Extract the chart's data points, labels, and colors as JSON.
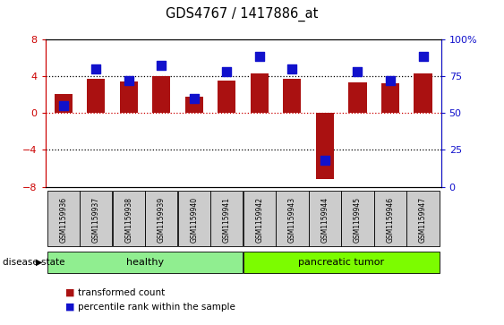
{
  "title": "GDS4767 / 1417886_at",
  "samples": [
    "GSM1159936",
    "GSM1159937",
    "GSM1159938",
    "GSM1159939",
    "GSM1159940",
    "GSM1159941",
    "GSM1159942",
    "GSM1159943",
    "GSM1159944",
    "GSM1159945",
    "GSM1159946",
    "GSM1159947"
  ],
  "bar_values": [
    2.0,
    3.7,
    3.4,
    4.0,
    1.8,
    3.5,
    4.3,
    3.7,
    -7.2,
    3.3,
    3.2,
    4.3
  ],
  "percentile_values": [
    55,
    80,
    72,
    82,
    60,
    78,
    88,
    80,
    18,
    78,
    72,
    88
  ],
  "bar_color": "#AA1111",
  "percentile_color": "#1111CC",
  "healthy_label": "healthy",
  "tumor_label": "pancreatic tumor",
  "disease_state_label": "disease state",
  "legend_bar_label": "transformed count",
  "legend_pct_label": "percentile rank within the sample",
  "ylim_left": [
    -8,
    8
  ],
  "yticks_left": [
    -8,
    -4,
    0,
    4,
    8
  ],
  "ylim_right": [
    0,
    100
  ],
  "yticks_right": [
    0,
    25,
    50,
    75,
    100
  ],
  "ytick_labels_right": [
    "0",
    "25",
    "50",
    "75",
    "100%"
  ],
  "hline_color_red": "#CC0000",
  "sample_bg": "#CCCCCC",
  "healthy_bg": "#90EE90",
  "tumor_bg": "#7CFC00",
  "bar_width": 0.55,
  "percentile_marker_size": 45,
  "n_healthy": 6,
  "n_tumor": 6
}
